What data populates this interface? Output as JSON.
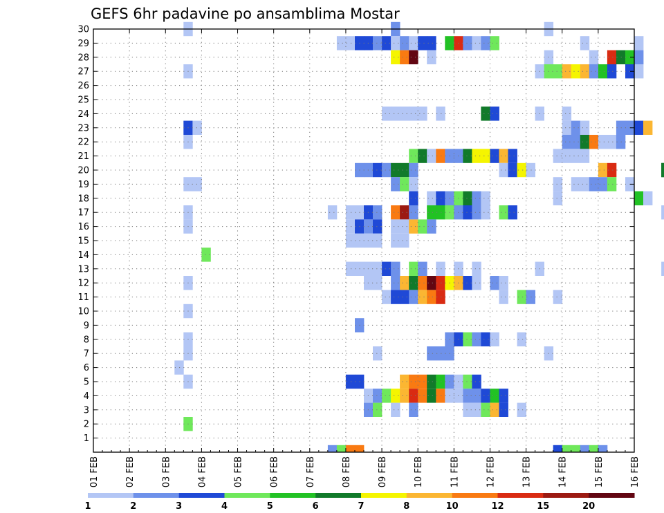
{
  "chart_data": {
    "type": "heatmap",
    "title": "GEFS 6hr padavine po ansamblima Mostar",
    "y_ticks": [
      "1",
      "2",
      "3",
      "4",
      "5",
      "6",
      "7",
      "8",
      "9",
      "10",
      "11",
      "12",
      "13",
      "14",
      "15",
      "16",
      "17",
      "18",
      "19",
      "20",
      "21",
      "22",
      "23",
      "24",
      "25",
      "26",
      "27",
      "28",
      "29",
      "30"
    ],
    "x_ticks": [
      "01 FEB",
      "02 FEB",
      "03 FEB",
      "04 FEB",
      "05 FEB",
      "06 FEB",
      "07 FEB",
      "08 FEB",
      "09 FEB",
      "10 FEB",
      "11 FEB",
      "12 FEB",
      "13 FEB",
      "14 FEB",
      "15 FEB",
      "16 FEB"
    ],
    "xlim": [
      1,
      16
    ],
    "ylim": [
      0,
      30
    ],
    "steps_per_day": 4,
    "grid": true,
    "colorbar": {
      "levels": [
        "1",
        "2",
        "3",
        "4",
        "5",
        "6",
        "7",
        "8",
        "10",
        "12",
        "15",
        "20"
      ],
      "colors": [
        "#b3c6f5",
        "#6e91ea",
        "#1f49d6",
        "#6fe85b",
        "#22c224",
        "#117a2a",
        "#f5f500",
        "#fbb632",
        "#f97a12",
        "#d92b12",
        "#9c1a12",
        "#620612"
      ]
    },
    "cells": [
      [
        3.5,
        30,
        0
      ],
      [
        9.25,
        30,
        1
      ],
      [
        13.5,
        30,
        0
      ],
      [
        7.75,
        29,
        0
      ],
      [
        8,
        29,
        0
      ],
      [
        8.25,
        29,
        2
      ],
      [
        8.5,
        29,
        2
      ],
      [
        8.75,
        29,
        1
      ],
      [
        9,
        29,
        2
      ],
      [
        9.25,
        29,
        0
      ],
      [
        9.5,
        29,
        1
      ],
      [
        9.75,
        29,
        0
      ],
      [
        10,
        29,
        2
      ],
      [
        10.25,
        29,
        2
      ],
      [
        10.75,
        29,
        4
      ],
      [
        11,
        29,
        9
      ],
      [
        11.25,
        29,
        1
      ],
      [
        11.5,
        29,
        0
      ],
      [
        11.75,
        29,
        1
      ],
      [
        12,
        29,
        3
      ],
      [
        14.5,
        29,
        0
      ],
      [
        16,
        29,
        0
      ],
      [
        9.25,
        28,
        6
      ],
      [
        9.5,
        28,
        8
      ],
      [
        9.75,
        28,
        11
      ],
      [
        10.25,
        28,
        0
      ],
      [
        13.5,
        28,
        0
      ],
      [
        14.75,
        28,
        0
      ],
      [
        15.25,
        28,
        9
      ],
      [
        15.5,
        28,
        5
      ],
      [
        15.75,
        28,
        4
      ],
      [
        16,
        28,
        1
      ],
      [
        3.5,
        27,
        0
      ],
      [
        13.25,
        27,
        0
      ],
      [
        13.5,
        27,
        3
      ],
      [
        13.75,
        27,
        3
      ],
      [
        14,
        27,
        7
      ],
      [
        14.25,
        27,
        6
      ],
      [
        14.5,
        27,
        7
      ],
      [
        14.75,
        27,
        1
      ],
      [
        15,
        27,
        4
      ],
      [
        15.25,
        27,
        2
      ],
      [
        15.75,
        27,
        2
      ],
      [
        16,
        27,
        0
      ],
      [
        9,
        24,
        0
      ],
      [
        9.25,
        24,
        0
      ],
      [
        9.5,
        24,
        0
      ],
      [
        9.75,
        24,
        0
      ],
      [
        10,
        24,
        0
      ],
      [
        10.5,
        24,
        0
      ],
      [
        11.75,
        24,
        5
      ],
      [
        12,
        24,
        2
      ],
      [
        13.25,
        24,
        0
      ],
      [
        14,
        24,
        0
      ],
      [
        3.5,
        23,
        2
      ],
      [
        3.75,
        23,
        0
      ],
      [
        14,
        23,
        0
      ],
      [
        14.25,
        23,
        1
      ],
      [
        14.5,
        23,
        0
      ],
      [
        15.5,
        23,
        1
      ],
      [
        15.75,
        23,
        1
      ],
      [
        16,
        23,
        2
      ],
      [
        16.25,
        23,
        7
      ],
      [
        3.5,
        22,
        0
      ],
      [
        14,
        22,
        1
      ],
      [
        14.25,
        22,
        1
      ],
      [
        14.5,
        22,
        5
      ],
      [
        14.75,
        22,
        8
      ],
      [
        15,
        22,
        0
      ],
      [
        15.25,
        22,
        0
      ],
      [
        15.5,
        22,
        1
      ],
      [
        9.75,
        21,
        3
      ],
      [
        10,
        21,
        5
      ],
      [
        10.25,
        21,
        0
      ],
      [
        10.5,
        21,
        8
      ],
      [
        10.75,
        21,
        1
      ],
      [
        11,
        21,
        1
      ],
      [
        11.25,
        21,
        5
      ],
      [
        11.5,
        21,
        6
      ],
      [
        11.75,
        21,
        6
      ],
      [
        12,
        21,
        2
      ],
      [
        12.25,
        21,
        7
      ],
      [
        12.5,
        21,
        2
      ],
      [
        13.75,
        21,
        0
      ],
      [
        14,
        21,
        0
      ],
      [
        14.25,
        21,
        0
      ],
      [
        14.5,
        21,
        0
      ],
      [
        8.25,
        20,
        1
      ],
      [
        8.5,
        20,
        1
      ],
      [
        8.75,
        20,
        2
      ],
      [
        9,
        20,
        1
      ],
      [
        9.25,
        20,
        5
      ],
      [
        9.5,
        20,
        5
      ],
      [
        9.75,
        20,
        1
      ],
      [
        12.25,
        20,
        0
      ],
      [
        12.5,
        20,
        2
      ],
      [
        12.75,
        20,
        6
      ],
      [
        13,
        20,
        0
      ],
      [
        15,
        20,
        7
      ],
      [
        15.25,
        20,
        9
      ],
      [
        16.75,
        20,
        5
      ],
      [
        16.75,
        20,
        5
      ],
      [
        3.5,
        19,
        0
      ],
      [
        3.75,
        19,
        0
      ],
      [
        9.25,
        19,
        1
      ],
      [
        9.5,
        19,
        3
      ],
      [
        9.75,
        19,
        0
      ],
      [
        13.75,
        19,
        0
      ],
      [
        14.25,
        19,
        0
      ],
      [
        14.5,
        19,
        0
      ],
      [
        14.75,
        19,
        1
      ],
      [
        15,
        19,
        1
      ],
      [
        15.25,
        19,
        3
      ],
      [
        15.75,
        19,
        0
      ],
      [
        9.75,
        18,
        2
      ],
      [
        10.25,
        18,
        0
      ],
      [
        10.5,
        18,
        2
      ],
      [
        10.75,
        18,
        1
      ],
      [
        11,
        18,
        3
      ],
      [
        11.25,
        18,
        5
      ],
      [
        11.5,
        18,
        1
      ],
      [
        11.75,
        18,
        0
      ],
      [
        13.75,
        18,
        0
      ],
      [
        16,
        18,
        4
      ],
      [
        16.25,
        18,
        0
      ],
      [
        3.5,
        17,
        0
      ],
      [
        7.5,
        17,
        0
      ],
      [
        8,
        17,
        0
      ],
      [
        8.25,
        17,
        0
      ],
      [
        8.5,
        17,
        2
      ],
      [
        8.75,
        17,
        1
      ],
      [
        9.25,
        17,
        8
      ],
      [
        9.5,
        17,
        10
      ],
      [
        9.75,
        17,
        1
      ],
      [
        10.25,
        17,
        4
      ],
      [
        10.5,
        17,
        4
      ],
      [
        10.75,
        17,
        3
      ],
      [
        11,
        17,
        1
      ],
      [
        11.25,
        17,
        2
      ],
      [
        11.5,
        17,
        1
      ],
      [
        11.75,
        17,
        0
      ],
      [
        12.25,
        17,
        3
      ],
      [
        12.5,
        17,
        2
      ],
      [
        16.75,
        17,
        0
      ],
      [
        3.5,
        16,
        0
      ],
      [
        8,
        16,
        0
      ],
      [
        8.25,
        16,
        2
      ],
      [
        8.5,
        16,
        1
      ],
      [
        8.75,
        16,
        2
      ],
      [
        9.25,
        16,
        0
      ],
      [
        9.5,
        16,
        0
      ],
      [
        9.75,
        16,
        7
      ],
      [
        10,
        16,
        3
      ],
      [
        10.25,
        16,
        1
      ],
      [
        8,
        15,
        0
      ],
      [
        8.25,
        15,
        0
      ],
      [
        8.5,
        15,
        0
      ],
      [
        8.75,
        15,
        0
      ],
      [
        9.25,
        15,
        0
      ],
      [
        9.5,
        15,
        0
      ],
      [
        8,
        13,
        0
      ],
      [
        8.25,
        13,
        0
      ],
      [
        8.5,
        13,
        0
      ],
      [
        8.75,
        13,
        0
      ],
      [
        9,
        13,
        2
      ],
      [
        9.25,
        13,
        1
      ],
      [
        9.75,
        13,
        3
      ],
      [
        10,
        13,
        1
      ],
      [
        10.5,
        13,
        0
      ],
      [
        11,
        13,
        0
      ],
      [
        11.5,
        13,
        0
      ],
      [
        13.25,
        13,
        0
      ],
      [
        16.75,
        13,
        0
      ],
      [
        4,
        14,
        3
      ],
      [
        8.5,
        12,
        0
      ],
      [
        8.75,
        12,
        0
      ],
      [
        9.25,
        12,
        1
      ],
      [
        9.5,
        12,
        7
      ],
      [
        9.75,
        12,
        5
      ],
      [
        10,
        12,
        8
      ],
      [
        10.25,
        12,
        11
      ],
      [
        10.5,
        12,
        9
      ],
      [
        10.75,
        12,
        6
      ],
      [
        11,
        12,
        7
      ],
      [
        11.25,
        12,
        2
      ],
      [
        11.5,
        12,
        0
      ],
      [
        12,
        12,
        1
      ],
      [
        12.25,
        12,
        0
      ],
      [
        3.5,
        12,
        0
      ],
      [
        9,
        11,
        0
      ],
      [
        9.25,
        11,
        2
      ],
      [
        9.5,
        11,
        2
      ],
      [
        9.75,
        11,
        1
      ],
      [
        10,
        11,
        7
      ],
      [
        10.25,
        11,
        8
      ],
      [
        10.5,
        11,
        9
      ],
      [
        12.25,
        11,
        0
      ],
      [
        12.75,
        11,
        3
      ],
      [
        13,
        11,
        1
      ],
      [
        13.75,
        11,
        0
      ],
      [
        3.5,
        10,
        0
      ],
      [
        8.25,
        9,
        1
      ],
      [
        3.5,
        8,
        0
      ],
      [
        10.75,
        8,
        1
      ],
      [
        11,
        8,
        2
      ],
      [
        11.25,
        8,
        3
      ],
      [
        11.5,
        8,
        1
      ],
      [
        11.75,
        8,
        2
      ],
      [
        12,
        8,
        0
      ],
      [
        12.75,
        8,
        0
      ],
      [
        3.5,
        7,
        0
      ],
      [
        8.75,
        7,
        0
      ],
      [
        10.25,
        7,
        1
      ],
      [
        10.5,
        7,
        1
      ],
      [
        10.75,
        7,
        1
      ],
      [
        13.5,
        7,
        0
      ],
      [
        3.25,
        6,
        0
      ],
      [
        3.5,
        5,
        0
      ],
      [
        8,
        5,
        2
      ],
      [
        8.25,
        5,
        2
      ],
      [
        9.5,
        5,
        7
      ],
      [
        9.75,
        5,
        8
      ],
      [
        10,
        5,
        8
      ],
      [
        10.25,
        5,
        5
      ],
      [
        10.5,
        5,
        4
      ],
      [
        10.75,
        5,
        1
      ],
      [
        11,
        5,
        0
      ],
      [
        11.25,
        5,
        3
      ],
      [
        11.5,
        5,
        2
      ],
      [
        8.5,
        4,
        0
      ],
      [
        8.75,
        4,
        1
      ],
      [
        9,
        4,
        3
      ],
      [
        9.25,
        4,
        6
      ],
      [
        9.5,
        4,
        7
      ],
      [
        9.75,
        4,
        9
      ],
      [
        10,
        4,
        8
      ],
      [
        10.25,
        4,
        5
      ],
      [
        10.5,
        4,
        8
      ],
      [
        10.75,
        4,
        0
      ],
      [
        11,
        4,
        0
      ],
      [
        11.25,
        4,
        1
      ],
      [
        11.5,
        4,
        1
      ],
      [
        11.75,
        4,
        2
      ],
      [
        12,
        4,
        4
      ],
      [
        12.25,
        4,
        2
      ],
      [
        8.5,
        3,
        1
      ],
      [
        8.75,
        3,
        3
      ],
      [
        9.25,
        3,
        0
      ],
      [
        9.75,
        3,
        1
      ],
      [
        11.25,
        3,
        0
      ],
      [
        11.5,
        3,
        0
      ],
      [
        11.75,
        3,
        3
      ],
      [
        12,
        3,
        7
      ],
      [
        12.25,
        3,
        2
      ],
      [
        12.75,
        3,
        0
      ],
      [
        3.5,
        2,
        3
      ],
      [
        7.5,
        0,
        1
      ],
      [
        7.75,
        0,
        3
      ],
      [
        8,
        0,
        8
      ],
      [
        8.25,
        0,
        8
      ],
      [
        13.75,
        0,
        2
      ],
      [
        14,
        0,
        3
      ],
      [
        14.25,
        0,
        3
      ],
      [
        14.5,
        0,
        1
      ],
      [
        14.75,
        0,
        3
      ],
      [
        15,
        0,
        1
      ]
    ]
  }
}
